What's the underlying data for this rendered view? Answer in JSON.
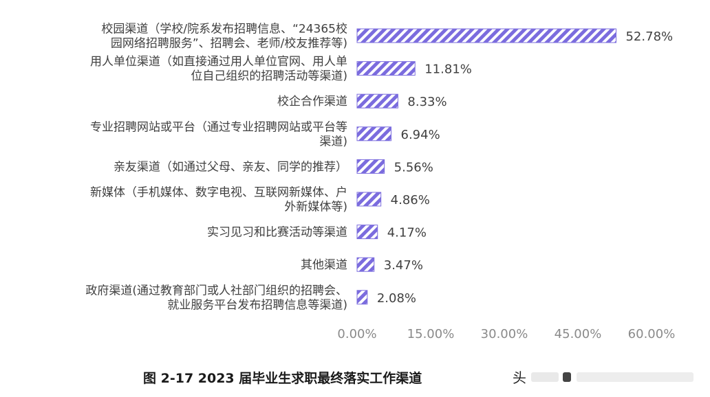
{
  "caption": "图 2-17   2023 届毕业生求职最终落实工作渠道",
  "watermark": "头",
  "chart_data": {
    "type": "bar",
    "orientation": "horizontal",
    "title": "",
    "xlabel": "",
    "ylabel": "",
    "xlim": [
      0,
      60
    ],
    "x_ticks": [
      "0.00%",
      "15.00%",
      "30.00%",
      "45.00%",
      "60.00%"
    ],
    "grid": false,
    "legend": "none",
    "bar_color": "#7b6cde",
    "bar_pattern": "diagonal-hatch",
    "categories": [
      [
        "校园渠道（学校/院系发布招聘信息、“24365校",
        "园网络招聘服务”、招聘会、老师/校友推荐等)"
      ],
      [
        "用人单位渠道（如直接通过用人单位官网、用人单",
        "位自己组织的招聘活动等渠道)"
      ],
      [
        "校企合作渠道"
      ],
      [
        "专业招聘网站或平台（通过专业招聘网站或平台等",
        "渠道)"
      ],
      [
        "亲友渠道（如通过父母、亲友、同学的推荐）"
      ],
      [
        "新媒体（手机媒体、数字电视、互联网新媒体、户",
        "外新媒体等)"
      ],
      [
        "实习见习和比赛活动等渠道"
      ],
      [
        "其他渠道"
      ],
      [
        "政府渠道(通过教育部门或人社部门组织的招聘会、",
        "就业服务平台发布招聘信息等渠道)"
      ]
    ],
    "values": [
      52.78,
      11.81,
      8.33,
      6.94,
      5.56,
      4.86,
      4.17,
      3.47,
      2.08
    ],
    "value_labels": [
      "52.78%",
      "11.81%",
      "8.33%",
      "6.94%",
      "5.56%",
      "4.86%",
      "4.17%",
      "3.47%",
      "2.08%"
    ]
  }
}
